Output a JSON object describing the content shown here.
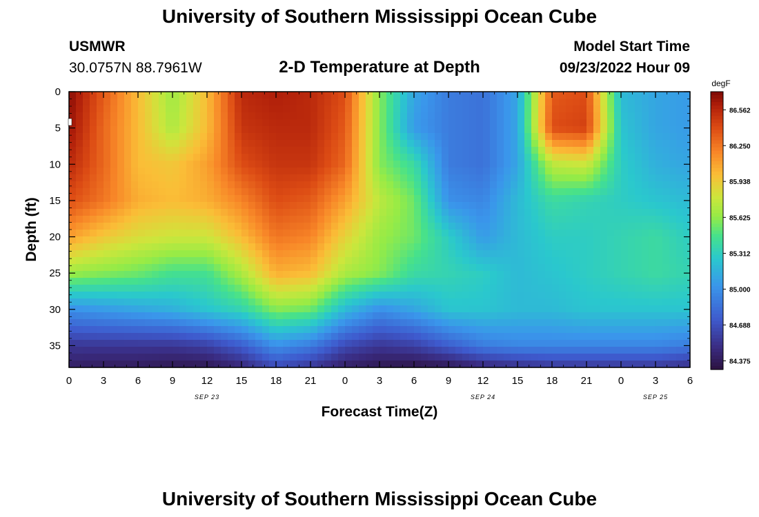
{
  "header": {
    "title": "University of Southern Mississippi Ocean Cube",
    "station": "USMWR",
    "coords": "30.0757N  88.7961W",
    "product": "2-D Temperature at Depth",
    "start_label": "Model Start Time",
    "start_value": "09/23/2022 Hour 09"
  },
  "footer": {
    "title": "University of Southern Mississippi Ocean Cube"
  },
  "chart_data": {
    "type": "heatmap",
    "title": "2-D Temperature at Depth",
    "xlabel": "Forecast Time(Z)",
    "ylabel": "Depth (ft)",
    "x_range_hours": [
      0,
      54
    ],
    "y_range_ft": [
      0,
      38
    ],
    "y_inverted": true,
    "x_tick_hours": [
      0,
      3,
      6,
      9,
      12,
      15,
      18,
      21,
      24,
      27,
      30,
      33,
      36,
      39,
      42,
      45,
      48,
      51,
      54
    ],
    "x_tick_labels": [
      "0",
      "3",
      "6",
      "9",
      "12",
      "15",
      "18",
      "21",
      "0",
      "3",
      "6",
      "9",
      "12",
      "15",
      "18",
      "21",
      "0",
      "3",
      "6"
    ],
    "y_tick_values": [
      0,
      5,
      10,
      15,
      20,
      25,
      30,
      35
    ],
    "y_tick_labels": [
      "0",
      "5",
      "10",
      "15",
      "20",
      "25",
      "30",
      "35"
    ],
    "date_labels": [
      {
        "hour": 12,
        "label": "SEP 23"
      },
      {
        "hour": 36,
        "label": "SEP 24"
      },
      {
        "hour": 51,
        "label": "SEP 25"
      }
    ],
    "colorbar": {
      "units": "degF",
      "min": 84.3,
      "max": 86.72,
      "tick_values": [
        84.375,
        84.688,
        85.0,
        85.312,
        85.625,
        85.938,
        86.25,
        86.562
      ],
      "tick_labels": [
        "84.375",
        "84.688",
        "85.000",
        "85.312",
        "85.625",
        "85.938",
        "86.250",
        "86.562"
      ]
    },
    "grid_hours": [
      0,
      3,
      6,
      9,
      12,
      15,
      18,
      21,
      24,
      27,
      30,
      33,
      36,
      39,
      42,
      45,
      48,
      51,
      54
    ],
    "grid_depths_ft": [
      0,
      5,
      10,
      15,
      20,
      25,
      30,
      35,
      38
    ],
    "values_degF": [
      [
        86.7,
        86.35,
        86.0,
        85.65,
        86.0,
        86.55,
        86.6,
        86.55,
        86.4,
        85.6,
        85.1,
        84.9,
        84.85,
        85.1,
        86.35,
        86.4,
        85.2,
        85.1,
        85.05
      ],
      [
        86.65,
        86.3,
        86.0,
        85.7,
        86.0,
        86.5,
        86.55,
        86.55,
        86.35,
        85.6,
        85.05,
        84.9,
        84.85,
        85.1,
        86.4,
        86.45,
        85.25,
        85.1,
        85.05
      ],
      [
        86.55,
        86.3,
        86.0,
        85.95,
        86.1,
        86.4,
        86.5,
        86.5,
        86.3,
        85.6,
        85.4,
        84.9,
        84.85,
        85.1,
        85.75,
        85.8,
        85.3,
        85.15,
        85.1
      ],
      [
        86.4,
        86.25,
        86.05,
        86.0,
        86.05,
        86.2,
        86.4,
        86.35,
        86.1,
        85.75,
        85.55,
        85.0,
        84.95,
        85.2,
        85.4,
        85.35,
        85.3,
        85.25,
        85.2
      ],
      [
        86.1,
        85.95,
        85.85,
        85.8,
        85.8,
        86.0,
        86.25,
        86.2,
        85.9,
        85.65,
        85.55,
        85.3,
        85.05,
        85.2,
        85.3,
        85.3,
        85.35,
        85.4,
        85.3
      ],
      [
        85.65,
        85.6,
        85.55,
        85.45,
        85.45,
        85.7,
        86.05,
        86.0,
        85.7,
        85.6,
        85.4,
        85.35,
        85.3,
        85.2,
        85.25,
        85.3,
        85.35,
        85.4,
        85.35
      ],
      [
        85.0,
        85.05,
        85.1,
        85.15,
        85.25,
        85.35,
        85.6,
        85.55,
        85.2,
        85.0,
        85.1,
        85.25,
        85.25,
        85.2,
        85.2,
        85.25,
        85.25,
        85.25,
        85.25
      ],
      [
        84.55,
        84.55,
        84.55,
        84.55,
        84.6,
        84.75,
        85.0,
        84.9,
        84.65,
        84.55,
        84.6,
        84.75,
        84.9,
        84.95,
        84.95,
        84.95,
        84.95,
        84.95,
        84.9
      ],
      [
        84.4,
        84.38,
        84.38,
        84.35,
        84.35,
        84.45,
        84.65,
        84.55,
        84.4,
        84.35,
        84.32,
        84.35,
        84.45,
        84.5,
        84.55,
        84.55,
        84.55,
        84.55,
        84.5
      ]
    ]
  }
}
